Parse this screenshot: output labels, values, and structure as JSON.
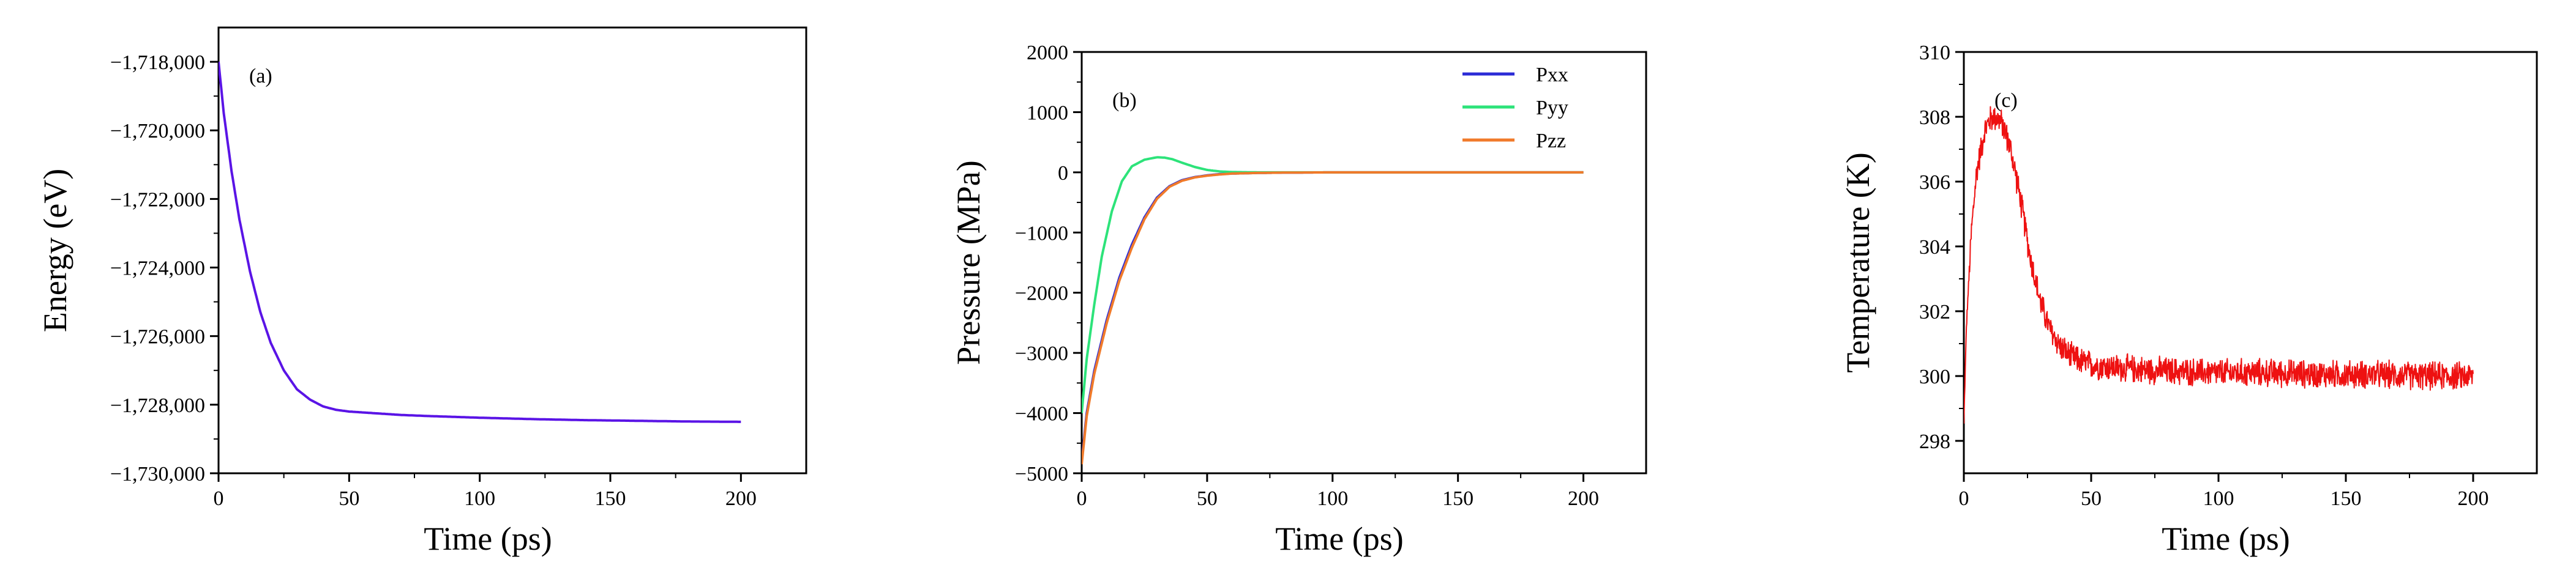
{
  "chart_data": [
    {
      "type": "line",
      "panel_label": "(a)",
      "title": "",
      "xlabel": "Time (ps)",
      "ylabel": "Energy (eV)",
      "xlim": [
        0,
        225
      ],
      "ylim": [
        -1730000,
        -1717000
      ],
      "xticks": [
        0,
        50,
        100,
        150,
        200
      ],
      "xtick_labels": [
        "0",
        "50",
        "100",
        "150",
        "200"
      ],
      "yticks": [
        -1730000,
        -1728000,
        -1726000,
        -1724000,
        -1722000,
        -1720000,
        -1718000
      ],
      "ytick_labels": [
        "−1,730,000",
        "−1,728,000",
        "−1,726,000",
        "−1,724,000",
        "−1,722,000",
        "−1,720,000",
        "−1,718,000"
      ],
      "series": [
        {
          "name": "Energy",
          "color": "#5a14e6",
          "x": [
            0,
            2,
            5,
            8,
            12,
            16,
            20,
            25,
            30,
            35,
            40,
            45,
            50,
            60,
            70,
            80,
            100,
            120,
            140,
            160,
            180,
            200
          ],
          "y": [
            -1718000,
            -1719500,
            -1721200,
            -1722600,
            -1724100,
            -1725300,
            -1726200,
            -1727000,
            -1727550,
            -1727850,
            -1728050,
            -1728150,
            -1728200,
            -1728250,
            -1728300,
            -1728330,
            -1728380,
            -1728420,
            -1728450,
            -1728470,
            -1728490,
            -1728500
          ]
        }
      ]
    },
    {
      "type": "line",
      "panel_label": "(b)",
      "title": "",
      "xlabel": "Time (ps)",
      "ylabel": "Pressure (MPa)",
      "xlim": [
        0,
        225
      ],
      "ylim": [
        -5000,
        2000
      ],
      "xticks": [
        0,
        50,
        100,
        150,
        200
      ],
      "xtick_labels": [
        "0",
        "50",
        "100",
        "150",
        "200"
      ],
      "yticks": [
        -5000,
        -4000,
        -3000,
        -2000,
        -1000,
        0,
        1000,
        2000
      ],
      "ytick_labels": [
        "−5000",
        "−4000",
        "−3000",
        "−2000",
        "−1000",
        "0",
        "1000",
        "2000"
      ],
      "legend": {
        "placement": "top-right",
        "entries": [
          "Pxx",
          "Pyy",
          "Pzz"
        ]
      },
      "series": [
        {
          "name": "Pxx",
          "color": "#2b2bd6",
          "x": [
            0,
            2,
            5,
            10,
            15,
            20,
            25,
            30,
            35,
            40,
            45,
            50,
            55,
            60,
            70,
            80,
            100,
            120,
            140,
            160,
            180,
            200
          ],
          "y": [
            -4800,
            -4000,
            -3300,
            -2450,
            -1750,
            -1200,
            -750,
            -420,
            -230,
            -130,
            -80,
            -50,
            -30,
            -20,
            -10,
            -5,
            0,
            0,
            0,
            0,
            0,
            0
          ]
        },
        {
          "name": "Pyy",
          "color": "#2de37a",
          "x": [
            0,
            2,
            5,
            8,
            12,
            16,
            20,
            25,
            30,
            33,
            36,
            40,
            45,
            50,
            55,
            60,
            70,
            80,
            100,
            150,
            200
          ],
          "y": [
            -4000,
            -3100,
            -2200,
            -1400,
            -650,
            -150,
            100,
            210,
            250,
            245,
            220,
            160,
            90,
            40,
            15,
            5,
            0,
            0,
            0,
            0,
            0
          ]
        },
        {
          "name": "Pzz",
          "color": "#f07a2a",
          "x": [
            0,
            2,
            5,
            10,
            15,
            20,
            25,
            30,
            35,
            40,
            45,
            50,
            55,
            60,
            70,
            80,
            100,
            120,
            140,
            160,
            180,
            200
          ],
          "y": [
            -4850,
            -4050,
            -3350,
            -2500,
            -1800,
            -1250,
            -780,
            -440,
            -240,
            -140,
            -85,
            -55,
            -35,
            -20,
            -10,
            -5,
            0,
            0,
            0,
            0,
            0,
            0
          ]
        }
      ]
    },
    {
      "type": "line",
      "panel_label": "(c)",
      "title": "",
      "xlabel": "Time (ps)",
      "ylabel": "Temperature (K)",
      "xlim": [
        0,
        225
      ],
      "ylim": [
        297,
        310
      ],
      "xticks": [
        0,
        50,
        100,
        150,
        200
      ],
      "xtick_labels": [
        "0",
        "50",
        "100",
        "150",
        "200"
      ],
      "yticks": [
        298,
        300,
        302,
        304,
        306,
        308,
        310
      ],
      "ytick_labels": [
        "298",
        "300",
        "302",
        "304",
        "306",
        "308",
        "310"
      ],
      "series": [
        {
          "name": "Temperature",
          "color": "#ee1111",
          "noise_amplitude": 0.45,
          "x": [
            0,
            1,
            3,
            5,
            8,
            10,
            12,
            14,
            16,
            18,
            20,
            23,
            26,
            30,
            34,
            38,
            42,
            46,
            50,
            60,
            70,
            80,
            100,
            120,
            140,
            160,
            180,
            200
          ],
          "y": [
            298.5,
            301.5,
            304.5,
            306.3,
            307.5,
            307.9,
            308.0,
            307.9,
            307.6,
            307.1,
            306.4,
            305.1,
            303.7,
            302.3,
            301.4,
            300.9,
            300.6,
            300.45,
            300.35,
            300.25,
            300.2,
            300.15,
            300.1,
            300.1,
            300.05,
            300.05,
            300.0,
            300.0
          ]
        }
      ]
    }
  ]
}
